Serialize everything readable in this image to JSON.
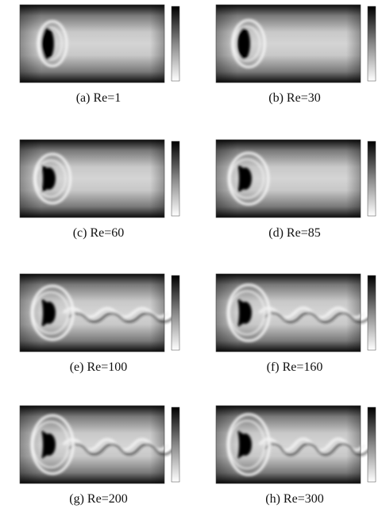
{
  "figure": {
    "panels": [
      {
        "caption": "(a) Re=1"
      },
      {
        "caption": "(b) Re=30"
      },
      {
        "caption": "(c) Re=60"
      },
      {
        "caption": "(d) Re=85"
      },
      {
        "caption": "(e) Re=100"
      },
      {
        "caption": "(f) Re=160"
      },
      {
        "caption": "(g) Re=200"
      },
      {
        "caption": "(h) Re=300"
      }
    ]
  }
}
